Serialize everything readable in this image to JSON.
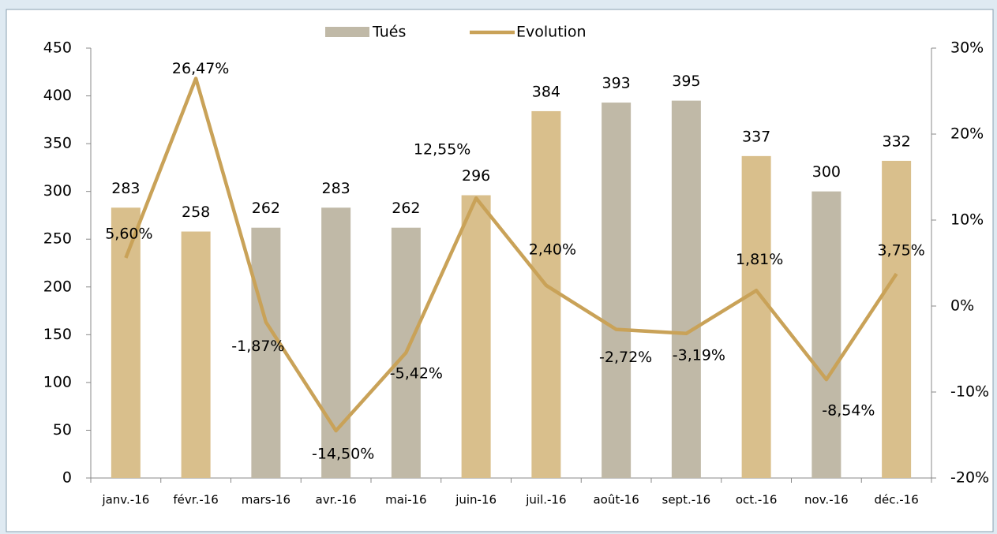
{
  "chart_data": {
    "type": "bar-line",
    "categories": [
      "janv.-16",
      "févr.-16",
      "mars-16",
      "avr.-16",
      "mai-16",
      "juin-16",
      "juil.-16",
      "août-16",
      "sept.-16",
      "oct.-16",
      "nov.-16",
      "déc.-16"
    ],
    "series": [
      {
        "name": "Tués",
        "type": "bar",
        "color": "#c0b9a7",
        "colors": [
          "#d9bf8c",
          "#d9bf8c",
          "#c0b9a7",
          "#c0b9a7",
          "#c0b9a7",
          "#d9bf8c",
          "#d9bf8c",
          "#c0b9a7",
          "#c0b9a7",
          "#d9bf8c",
          "#c0b9a7",
          "#d9bf8c"
        ],
        "values": [
          283,
          258,
          262,
          283,
          262,
          296,
          384,
          393,
          395,
          337,
          300,
          332
        ]
      },
      {
        "name": "Evolution",
        "type": "line",
        "axis": "y2",
        "color": "#c9a258",
        "values": [
          5.6,
          26.47,
          -1.87,
          -14.5,
          -5.42,
          12.55,
          2.4,
          -2.72,
          -3.19,
          1.81,
          -8.54,
          3.75
        ],
        "value_labels": [
          "5,60%",
          "26,47%",
          "-1,87%",
          "-14,50%",
          "-5,42%",
          "12,55%",
          "2,40%",
          "-2,72%",
          "-3,19%",
          "1,81%",
          "-8,54%",
          "3,75%"
        ]
      }
    ],
    "ylim": [
      0,
      450
    ],
    "yticks": [
      0,
      50,
      100,
      150,
      200,
      250,
      300,
      350,
      400,
      450
    ],
    "y2lim": [
      -20,
      30
    ],
    "y2ticks": [
      {
        "value": -20,
        "label": "-20%"
      },
      {
        "value": -10,
        "label": "-10%"
      },
      {
        "value": 0,
        "label": "0%"
      },
      {
        "value": 10,
        "label": "10%"
      },
      {
        "value": 20,
        "label": "20%"
      },
      {
        "value": 30,
        "label": "30%"
      }
    ]
  }
}
